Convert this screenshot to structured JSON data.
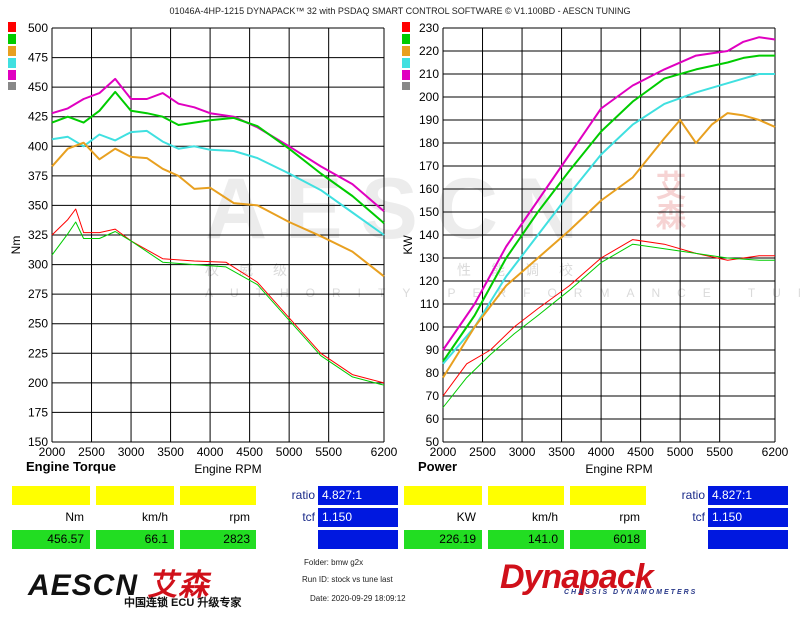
{
  "header": "01046A-4HP-1215 DYNAPACK™ 32 with PSDAQ SMART CONTROL SOFTWARE © V1.100BD - AESCN TUNING",
  "legend_colors": [
    "#ff0000",
    "#00cc00",
    "#e8a020",
    "#40e0e0",
    "#e000c0",
    "#888888"
  ],
  "watermark": {
    "main": "AESCN",
    "cn_chars": [
      "权",
      "威",
      "级",
      "性",
      "能",
      "调",
      "校"
    ],
    "en": "AUTHORITY PERFORMANCE TUNE",
    "side": "艾森"
  },
  "left_panel": {
    "title": "Engine Torque",
    "labels": [
      "Nm",
      "km/h",
      "rpm"
    ],
    "values": [
      "456.57",
      "66.1",
      "2823"
    ],
    "ratio_label": "ratio",
    "ratio": "4.827:1",
    "tcf_label": "tcf",
    "tcf": "1.150"
  },
  "right_panel": {
    "title": "Power",
    "labels": [
      "KW",
      "km/h",
      "rpm"
    ],
    "values": [
      "226.19",
      "141.0",
      "6018"
    ],
    "ratio_label": "ratio",
    "ratio": "4.827:1",
    "tcf_label": "tcf",
    "tcf": "1.150"
  },
  "meta": {
    "folder": "Folder:  bmw g2x",
    "run": "Run ID:  stock vs tune last",
    "date": "Date:  2020-09-29 18:09:12"
  },
  "brand": {
    "logo_left": "AESCN",
    "logo_left_cn": "艾森",
    "logo_left_sub": "中国连锁 ECU 升级专家",
    "logo_right": "Dynapack",
    "logo_right_sub": "CHASSIS DYNAMOMETERS"
  },
  "chart_data": [
    {
      "type": "line",
      "xlabel": "Engine RPM",
      "ylabel": "Nm",
      "xlim": [
        2000,
        6200
      ],
      "ylim": [
        150,
        500
      ],
      "xticks": [
        2000,
        2500,
        3000,
        3500,
        4000,
        4500,
        5000,
        5500,
        6200
      ],
      "yticks": [
        150,
        175,
        200,
        225,
        250,
        275,
        300,
        325,
        350,
        375,
        400,
        425,
        450,
        475,
        500
      ],
      "grid": true,
      "series": [
        {
          "color": "#e000c0",
          "x": [
            2000,
            2200,
            2400,
            2600,
            2800,
            3000,
            3200,
            3400,
            3600,
            3800,
            4000,
            4300,
            4600,
            5000,
            5400,
            5800,
            6200
          ],
          "y": [
            428,
            432,
            440,
            445,
            457,
            440,
            440,
            445,
            436,
            433,
            428,
            425,
            416,
            400,
            383,
            368,
            345
          ]
        },
        {
          "color": "#00cc00",
          "x": [
            2000,
            2200,
            2400,
            2600,
            2800,
            3000,
            3200,
            3400,
            3600,
            3800,
            4000,
            4300,
            4600,
            5000,
            5400,
            5800,
            6200
          ],
          "y": [
            420,
            425,
            420,
            430,
            446,
            430,
            428,
            425,
            418,
            420,
            422,
            424,
            417,
            398,
            377,
            358,
            335
          ]
        },
        {
          "color": "#40e0e0",
          "x": [
            2000,
            2200,
            2400,
            2600,
            2800,
            3000,
            3200,
            3400,
            3600,
            3800,
            4000,
            4300,
            4600,
            5000,
            5400,
            5800,
            6200
          ],
          "y": [
            406,
            408,
            400,
            410,
            405,
            412,
            413,
            404,
            398,
            400,
            397,
            396,
            390,
            377,
            363,
            344,
            325
          ]
        },
        {
          "color": "#e8a020",
          "x": [
            2000,
            2200,
            2400,
            2600,
            2800,
            3000,
            3200,
            3400,
            3600,
            3800,
            4000,
            4300,
            4600,
            5000,
            5400,
            5800,
            6200
          ],
          "y": [
            383,
            398,
            403,
            389,
            398,
            391,
            390,
            381,
            375,
            364,
            365,
            352,
            350,
            336,
            324,
            311,
            290
          ]
        },
        {
          "color": "#ff0000",
          "x": [
            2000,
            2200,
            2300,
            2400,
            2600,
            2800,
            3000,
            3400,
            3800,
            4200,
            4600,
            5000,
            5400,
            5800,
            6200
          ],
          "y": [
            325,
            338,
            347,
            327,
            327,
            330,
            320,
            305,
            303,
            302,
            285,
            255,
            225,
            207,
            200
          ]
        },
        {
          "color": "#00cc00",
          "x": [
            2000,
            2200,
            2300,
            2400,
            2600,
            2800,
            3000,
            3400,
            3800,
            4200,
            4600,
            5000,
            5400,
            5800,
            6200
          ],
          "y": [
            308,
            326,
            336,
            322,
            322,
            328,
            320,
            302,
            300,
            298,
            283,
            253,
            223,
            205,
            198
          ]
        }
      ]
    },
    {
      "type": "line",
      "xlabel": "Engine RPM",
      "ylabel": "KW",
      "xlim": [
        2000,
        6200
      ],
      "ylim": [
        50,
        230
      ],
      "xticks": [
        2000,
        2500,
        3000,
        3500,
        4000,
        4500,
        5000,
        5500,
        6200
      ],
      "yticks": [
        50,
        60,
        70,
        80,
        90,
        100,
        110,
        120,
        130,
        140,
        150,
        160,
        170,
        180,
        190,
        200,
        210,
        220,
        230
      ],
      "grid": true,
      "series": [
        {
          "color": "#e000c0",
          "x": [
            2000,
            2400,
            2800,
            3200,
            3600,
            4000,
            4400,
            4800,
            5200,
            5600,
            5800,
            6000,
            6200
          ],
          "y": [
            90,
            110,
            135,
            155,
            175,
            195,
            205,
            212,
            218,
            220,
            224,
            226,
            225
          ]
        },
        {
          "color": "#00cc00",
          "x": [
            2000,
            2400,
            2800,
            3200,
            3600,
            4000,
            4400,
            4800,
            5200,
            5600,
            5800,
            6000,
            6200
          ],
          "y": [
            85,
            105,
            130,
            150,
            168,
            185,
            198,
            208,
            212,
            215,
            217,
            218,
            218
          ]
        },
        {
          "color": "#40e0e0",
          "x": [
            2000,
            2400,
            2800,
            3200,
            3600,
            4000,
            4400,
            4800,
            5200,
            5600,
            5800,
            6000,
            6200
          ],
          "y": [
            84,
            100,
            122,
            140,
            158,
            175,
            188,
            197,
            202,
            206,
            208,
            210,
            210
          ]
        },
        {
          "color": "#e8a020",
          "x": [
            2000,
            2400,
            2800,
            3200,
            3600,
            4000,
            4400,
            4800,
            5000,
            5200,
            5400,
            5600,
            5800,
            6000,
            6200
          ],
          "y": [
            78,
            100,
            118,
            130,
            142,
            155,
            165,
            182,
            190,
            180,
            188,
            193,
            192,
            190,
            187
          ]
        },
        {
          "color": "#ff0000",
          "x": [
            2000,
            2300,
            2600,
            2900,
            3200,
            3600,
            4000,
            4400,
            4800,
            5200,
            5600,
            6000,
            6200
          ],
          "y": [
            70,
            84,
            90,
            100,
            108,
            118,
            130,
            138,
            136,
            132,
            129,
            131,
            131
          ]
        },
        {
          "color": "#00cc00",
          "x": [
            2000,
            2300,
            2600,
            2900,
            3200,
            3600,
            4000,
            4400,
            4800,
            5200,
            5600,
            6000,
            6200
          ],
          "y": [
            65,
            78,
            88,
            97,
            105,
            116,
            128,
            136,
            134,
            132,
            130,
            129,
            129
          ]
        }
      ]
    }
  ]
}
